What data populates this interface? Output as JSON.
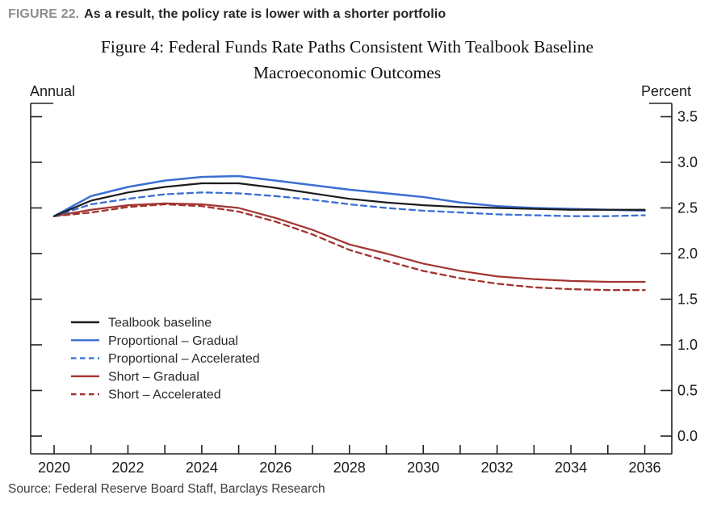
{
  "header": {
    "figure_label": "FIGURE 22.",
    "figure_caption": "As a result, the policy rate is lower with a shorter portfolio"
  },
  "title": {
    "line1": "Figure 4: Federal Funds Rate Paths Consistent With Tealbook Baseline",
    "line2": "Macroeconomic Outcomes"
  },
  "source": "Source: Federal Reserve Board Staff, Barclays Research",
  "colors": {
    "baseline_black": "#1c1c1c",
    "proportional_blue": "#3b6fd4",
    "short_red": "#a23430",
    "axis": "#222222",
    "header_gray": "#8e8e8e"
  },
  "chart_data": {
    "type": "line",
    "title": "Figure 4: Federal Funds Rate Paths Consistent With Tealbook Baseline Macroeconomic Outcomes",
    "left_axis_note": "Annual",
    "right_axis_note": "Percent",
    "xlabel": "",
    "ylabel": "Percent",
    "ylim": [
      0,
      3.5
    ],
    "grid": false,
    "legend_position": "inside-middle-left",
    "y_ticks": [
      "0.0",
      "0.5",
      "1.0",
      "1.5",
      "2.0",
      "2.5",
      "3.0",
      "3.5"
    ],
    "x": [
      2020,
      2021,
      2022,
      2023,
      2024,
      2025,
      2026,
      2027,
      2028,
      2029,
      2030,
      2031,
      2032,
      2033,
      2034,
      2035,
      2036
    ],
    "x_label_ticks": [
      2020,
      2022,
      2024,
      2026,
      2028,
      2030,
      2032,
      2034,
      2036
    ],
    "series": [
      {
        "name": "Tealbook baseline",
        "color": "#1c1c1c",
        "dashed": false,
        "values": [
          2.41,
          2.58,
          2.67,
          2.73,
          2.77,
          2.77,
          2.72,
          2.66,
          2.6,
          2.56,
          2.53,
          2.51,
          2.5,
          2.49,
          2.48,
          2.48,
          2.48
        ]
      },
      {
        "name": "Proportional – Gradual",
        "color": "#3b6fd4",
        "dashed": false,
        "values": [
          2.41,
          2.63,
          2.73,
          2.8,
          2.84,
          2.85,
          2.8,
          2.75,
          2.7,
          2.66,
          2.62,
          2.56,
          2.52,
          2.5,
          2.49,
          2.48,
          2.47
        ]
      },
      {
        "name": "Proportional – Accelerated",
        "color": "#3b6fd4",
        "dashed": true,
        "values": [
          2.41,
          2.54,
          2.6,
          2.65,
          2.67,
          2.66,
          2.63,
          2.59,
          2.54,
          2.5,
          2.47,
          2.45,
          2.43,
          2.42,
          2.41,
          2.41,
          2.42
        ]
      },
      {
        "name": "Short – Gradual",
        "color": "#a23430",
        "dashed": false,
        "values": [
          2.41,
          2.48,
          2.53,
          2.55,
          2.54,
          2.5,
          2.39,
          2.26,
          2.1,
          2.0,
          1.89,
          1.81,
          1.75,
          1.72,
          1.7,
          1.69,
          1.69
        ]
      },
      {
        "name": "Short – Accelerated",
        "color": "#a23430",
        "dashed": true,
        "values": [
          2.41,
          2.45,
          2.51,
          2.54,
          2.52,
          2.46,
          2.35,
          2.21,
          2.04,
          1.92,
          1.81,
          1.73,
          1.67,
          1.63,
          1.61,
          1.6,
          1.6
        ]
      }
    ]
  }
}
